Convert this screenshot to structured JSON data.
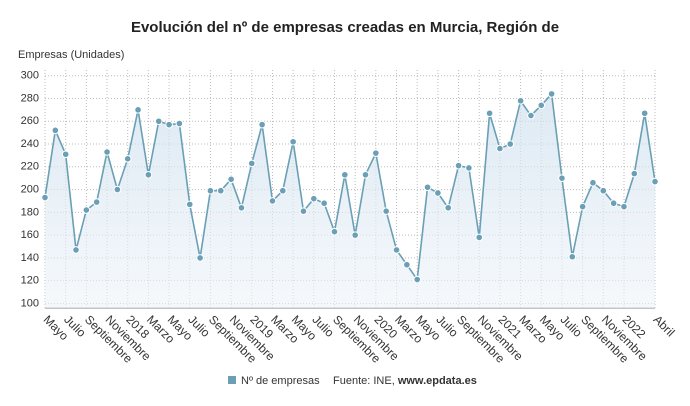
{
  "chart_data": {
    "type": "line",
    "title": "Evolución del nº de empresas creadas en Murcia, Región de",
    "y_label": "Empresas (Unidades)",
    "categories": [
      "Mayo",
      null,
      "Julio",
      null,
      "Septiembre",
      null,
      "Noviembre",
      null,
      "2018",
      null,
      "Marzo",
      null,
      "Mayo",
      null,
      "Julio",
      null,
      "Septiembre",
      null,
      "Noviembre",
      null,
      "2019",
      null,
      "Marzo",
      null,
      "Mayo",
      null,
      "Julio",
      null,
      "Septiembre",
      null,
      "Noviembre",
      null,
      "2020",
      null,
      "Marzo",
      null,
      "Mayo",
      null,
      "Julio",
      null,
      "Septiembre",
      null,
      "Noviembre",
      null,
      "2021",
      null,
      "Marzo",
      null,
      "Mayo",
      null,
      "Julio",
      null,
      "Septiembre",
      null,
      "Noviembre",
      null,
      "2022",
      null,
      null,
      "Abril"
    ],
    "series": [
      {
        "name": "Nº de empresas",
        "color": "#6a9fb5",
        "values": [
          193,
          252,
          231,
          147,
          182,
          189,
          233,
          200,
          227,
          270,
          213,
          260,
          257,
          258,
          187,
          140,
          199,
          199,
          209,
          184,
          223,
          257,
          190,
          199,
          242,
          181,
          192,
          188,
          163,
          213,
          160,
          213,
          232,
          181,
          147,
          134,
          121,
          202,
          197,
          184,
          221,
          219,
          158,
          267,
          236,
          240,
          278,
          265,
          274,
          284,
          210,
          141,
          185,
          206,
          199,
          188,
          185,
          214,
          267,
          207
        ]
      }
    ],
    "ylim": [
      96,
      305
    ],
    "yticks": [
      100,
      120,
      140,
      160,
      180,
      200,
      220,
      240,
      260,
      280,
      300
    ],
    "grid": true,
    "source_prefix": "Fuente: INE, ",
    "source_site": "www.epdata.es"
  }
}
